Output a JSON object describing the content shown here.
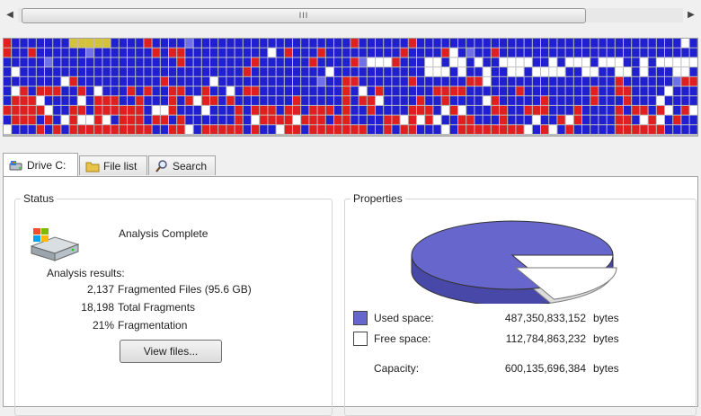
{
  "scrollbar": {
    "left_arrow": "◀",
    "right_arrow": "▶",
    "grip": "III"
  },
  "cluster_map": {
    "colors": {
      "used": "#2020d0",
      "fragmented": "#e02020",
      "free": "#ffffff",
      "system": "#d4c23a",
      "unmovable": "#7070e8",
      "mft": "#9060c0"
    }
  },
  "tabs": [
    {
      "label": "Drive C:",
      "icon": "drive-icon"
    },
    {
      "label": "File list",
      "icon": "folder-icon"
    },
    {
      "label": "Search",
      "icon": "magnifier-icon"
    }
  ],
  "status": {
    "title": "Status",
    "analysis": "Analysis Complete",
    "results_label": "Analysis results:",
    "results": [
      {
        "value": "2,137",
        "label": "Fragmented Files (95.6 GB)"
      },
      {
        "value": "18,198",
        "label": "Total Fragments"
      },
      {
        "value": "21%",
        "label": "Fragmentation"
      }
    ],
    "view_button": "View files..."
  },
  "properties": {
    "title": "Properties",
    "used_label": "Used space:",
    "used_value": "487,350,833,152",
    "used_unit": "bytes",
    "used_color": "#6666cc",
    "free_label": "Free space:",
    "free_value": "112,784,863,232",
    "free_unit": "bytes",
    "free_color": "#ffffff",
    "capacity_label": "Capacity:",
    "capacity_value": "600,135,696,384",
    "capacity_unit": "bytes",
    "used_fraction": 0.812
  }
}
